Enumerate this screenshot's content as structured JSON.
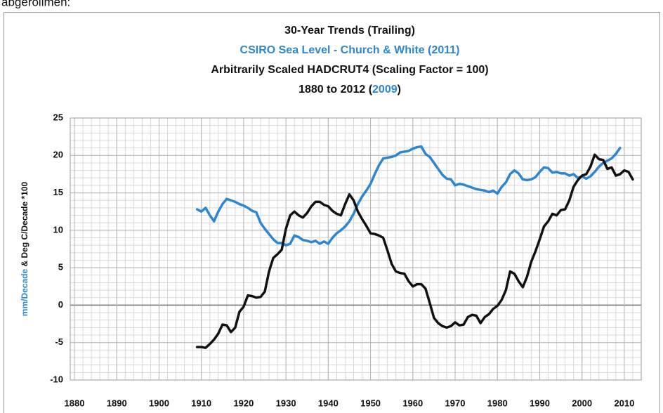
{
  "page_caption": "abgerollmen:",
  "chart_data": {
    "type": "line",
    "title": "30-Year Trends (Trailing)",
    "subtitle_lines": [
      {
        "text": "CSIRO Sea Level - Church & White (2011)",
        "color": "#2e86d1"
      },
      {
        "text": "Arbitrarily Scaled HADCRUT4 (Scaling Factor = 100)",
        "color": "#111111"
      }
    ],
    "period_line": [
      {
        "text": "1880 to 2012 (",
        "color": "#111111"
      },
      {
        "text": "2009",
        "color": "#2e86d1"
      },
      {
        "text": ")",
        "color": "#111111"
      }
    ],
    "y_label_parts": [
      {
        "text": "mm/Decade",
        "color": "#2e86d1"
      },
      {
        "text": " & Deg C/Decade *100",
        "color": "#111111"
      }
    ],
    "xlim": [
      1879,
      2014
    ],
    "xticks": [
      1880,
      1890,
      1900,
      1910,
      1920,
      1930,
      1940,
      1950,
      1960,
      1970,
      1980,
      1990,
      2000,
      2010
    ],
    "ylim": [
      -10,
      25
    ],
    "yticks": [
      -10,
      -5,
      0,
      5,
      10,
      15,
      20,
      25
    ],
    "grid": true,
    "series": [
      {
        "color": "#2e86d1",
        "x": [
          1909,
          1910,
          1911,
          1912,
          1913,
          1914,
          1915,
          1916,
          1917,
          1918,
          1919,
          1920,
          1921,
          1922,
          1923,
          1924,
          1925,
          1926,
          1927,
          1928,
          1929,
          1930,
          1931,
          1932,
          1933,
          1934,
          1935,
          1936,
          1937,
          1938,
          1939,
          1940,
          1941,
          1942,
          1943,
          1944,
          1945,
          1946,
          1947,
          1948,
          1949,
          1950,
          1951,
          1952,
          1953,
          1954,
          1955,
          1956,
          1957,
          1958,
          1959,
          1960,
          1961,
          1962,
          1963,
          1964,
          1965,
          1966,
          1967,
          1968,
          1969,
          1970,
          1971,
          1972,
          1973,
          1974,
          1975,
          1976,
          1977,
          1978,
          1979,
          1980,
          1981,
          1982,
          1983,
          1984,
          1985,
          1986,
          1987,
          1988,
          1989,
          1990,
          1991,
          1992,
          1993,
          1994,
          1995,
          1996,
          1997,
          1998,
          1999,
          2000,
          2001,
          2002,
          2003,
          2004,
          2005,
          2006,
          2007,
          2008,
          2009
        ],
        "values": [
          12.8,
          12.5,
          13.0,
          12.0,
          11.2,
          12.5,
          13.5,
          14.2,
          14.0,
          13.8,
          13.5,
          13.3,
          13.0,
          12.6,
          12.4,
          11.0,
          10.2,
          9.5,
          8.8,
          8.3,
          8.3,
          8.0,
          8.2,
          9.3,
          9.1,
          8.7,
          8.6,
          8.4,
          8.6,
          8.2,
          8.5,
          8.2,
          9.0,
          9.6,
          10.0,
          10.5,
          11.2,
          12.2,
          13.5,
          14.5,
          15.3,
          16.2,
          17.5,
          18.7,
          19.6,
          19.7,
          19.8,
          20.0,
          20.4,
          20.5,
          20.6,
          20.9,
          21.1,
          21.2,
          20.2,
          19.8,
          19.0,
          18.2,
          17.4,
          16.9,
          16.8,
          16.0,
          16.2,
          16.1,
          15.9,
          15.7,
          15.5,
          15.4,
          15.3,
          15.1,
          15.3,
          14.9,
          15.8,
          16.4,
          17.5,
          18.0,
          17.6,
          16.8,
          16.7,
          16.8,
          17.1,
          17.8,
          18.4,
          18.3,
          17.7,
          17.8,
          17.6,
          17.6,
          17.3,
          17.5,
          17.0,
          17.2,
          16.9,
          17.2,
          17.8,
          18.5,
          19.0,
          19.3,
          19.6,
          20.2,
          21.0
        ]
      },
      {
        "color": "#111111",
        "x": [
          1909,
          1910,
          1911,
          1912,
          1913,
          1914,
          1915,
          1916,
          1917,
          1918,
          1919,
          1920,
          1921,
          1922,
          1923,
          1924,
          1925,
          1926,
          1927,
          1928,
          1929,
          1930,
          1931,
          1932,
          1933,
          1934,
          1935,
          1936,
          1937,
          1938,
          1939,
          1940,
          1941,
          1942,
          1943,
          1944,
          1945,
          1946,
          1947,
          1948,
          1949,
          1950,
          1951,
          1952,
          1953,
          1954,
          1955,
          1956,
          1957,
          1958,
          1959,
          1960,
          1961,
          1962,
          1963,
          1964,
          1965,
          1966,
          1967,
          1968,
          1969,
          1970,
          1971,
          1972,
          1973,
          1974,
          1975,
          1976,
          1977,
          1978,
          1979,
          1980,
          1981,
          1982,
          1983,
          1984,
          1985,
          1986,
          1987,
          1988,
          1989,
          1990,
          1991,
          1992,
          1993,
          1994,
          1995,
          1996,
          1997,
          1998,
          1999,
          2000,
          2001,
          2002,
          2003,
          2004,
          2005,
          2006,
          2007,
          2008,
          2009,
          2010,
          2011,
          2012
        ],
        "values": [
          -5.6,
          -5.6,
          -5.7,
          -5.2,
          -4.6,
          -3.8,
          -2.6,
          -2.7,
          -3.6,
          -3.0,
          -0.9,
          -0.2,
          1.3,
          1.2,
          1.0,
          1.1,
          1.8,
          4.5,
          6.3,
          6.8,
          7.4,
          10.2,
          12.0,
          12.5,
          12.0,
          11.7,
          12.3,
          13.2,
          13.8,
          13.8,
          13.4,
          13.2,
          12.6,
          12.2,
          12.0,
          13.5,
          14.8,
          14.0,
          12.5,
          11.5,
          10.6,
          9.6,
          9.5,
          9.3,
          9.0,
          7.3,
          5.5,
          4.5,
          4.3,
          4.2,
          3.2,
          2.5,
          2.8,
          2.8,
          2.2,
          0.3,
          -1.7,
          -2.4,
          -2.8,
          -3.0,
          -2.8,
          -2.3,
          -2.7,
          -2.6,
          -1.6,
          -1.3,
          -1.4,
          -2.4,
          -1.6,
          -1.2,
          -0.5,
          -0.1,
          0.7,
          2.0,
          4.5,
          4.2,
          3.2,
          2.4,
          3.8,
          5.8,
          7.2,
          8.8,
          10.5,
          11.2,
          12.2,
          12.0,
          12.7,
          12.8,
          14.0,
          15.8,
          16.7,
          17.3,
          17.5,
          18.5,
          20.1,
          19.5,
          19.4,
          18.2,
          18.4,
          17.3,
          17.5,
          18.0,
          17.8,
          16.8
        ]
      }
    ]
  }
}
